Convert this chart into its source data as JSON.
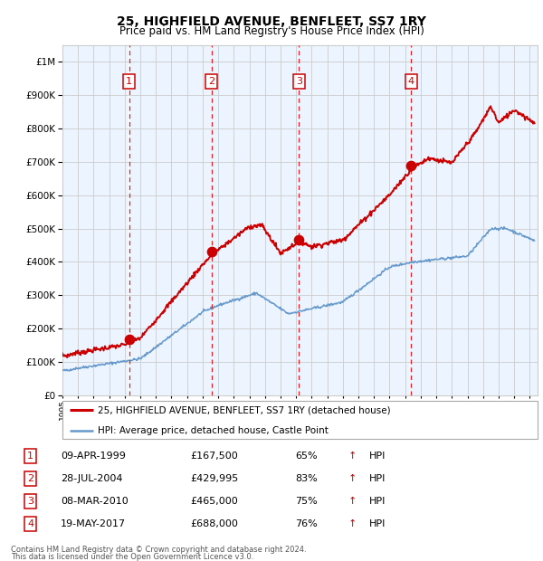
{
  "title": "25, HIGHFIELD AVENUE, BENFLEET, SS7 1RY",
  "subtitle": "Price paid vs. HM Land Registry's House Price Index (HPI)",
  "footnote1": "Contains HM Land Registry data © Crown copyright and database right 2024.",
  "footnote2": "This data is licensed under the Open Government Licence v3.0.",
  "legend_red": "25, HIGHFIELD AVENUE, BENFLEET, SS7 1RY (detached house)",
  "legend_blue": "HPI: Average price, detached house, Castle Point",
  "transactions": [
    {
      "num": 1,
      "date": "09-APR-1999",
      "price": 167500,
      "pct": "65%",
      "dir": "↑",
      "x_year": 1999.27
    },
    {
      "num": 2,
      "date": "28-JUL-2004",
      "price": 429995,
      "pct": "83%",
      "dir": "↑",
      "x_year": 2004.57
    },
    {
      "num": 3,
      "date": "08-MAR-2010",
      "price": 465000,
      "pct": "75%",
      "dir": "↑",
      "x_year": 2010.18
    },
    {
      "num": 4,
      "date": "19-MAY-2017",
      "price": 688000,
      "pct": "76%",
      "dir": "↑",
      "x_year": 2017.38
    }
  ],
  "red_color": "#cc0000",
  "blue_color": "#6699cc",
  "bg_color": "#ddeeff",
  "vline_color": "#dd2222",
  "box_color": "#cc0000",
  "grid_color": "#cccccc",
  "ylim": [
    0,
    1050000
  ],
  "xlim_start": 1995.0,
  "xlim_end": 2025.5
}
